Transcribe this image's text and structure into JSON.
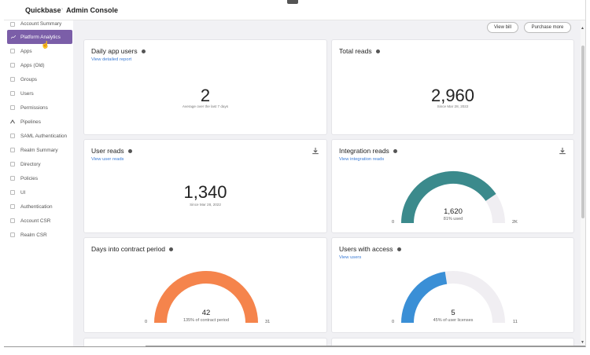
{
  "header": {
    "brand": "Quickbase",
    "separator": "›",
    "section": "Admin Console"
  },
  "sidebar": {
    "items": [
      {
        "label": "Account Summary"
      },
      {
        "label": "Platform Analytics",
        "active": true
      },
      {
        "label": "Apps"
      },
      {
        "label": "Apps (Old)"
      },
      {
        "label": "Groups"
      },
      {
        "label": "Users"
      },
      {
        "label": "Permissions"
      },
      {
        "label": "Pipelines"
      },
      {
        "label": "SAML Authentication"
      },
      {
        "label": "Realm Summary"
      },
      {
        "label": "Directory"
      },
      {
        "label": "Policies"
      },
      {
        "label": "UI"
      },
      {
        "label": "Authentication"
      },
      {
        "label": "Account CSR"
      },
      {
        "label": "Realm CSR"
      }
    ]
  },
  "toolbar": {
    "view_bill": "View bill",
    "purchase_more": "Purchase more"
  },
  "cards": {
    "daily_users": {
      "title": "Daily app users",
      "link": "View detailed report",
      "value": "2",
      "note": "Average over the last 7 days"
    },
    "total_reads": {
      "title": "Total reads",
      "value": "2,960",
      "note": "Since Mar 28, 2022"
    },
    "user_reads": {
      "title": "User reads",
      "link": "View user reads",
      "value": "1,340",
      "note": "Since Mar 28, 2022"
    },
    "integration_reads": {
      "title": "Integration reads",
      "link": "View integration reads",
      "value": "1,620",
      "sub": "81% used",
      "min": "0",
      "max": "2K",
      "fraction": 0.81,
      "color": "#3b8a8c"
    },
    "contract": {
      "title": "Days into contract period",
      "value": "42",
      "sub": "135% of contract period",
      "min": "0",
      "max": "31",
      "fraction": 1.0,
      "color": "#f5844c"
    },
    "users_access": {
      "title": "Users with access",
      "link": "View users",
      "value": "5",
      "sub": "45% of user licenses",
      "min": "0",
      "max": "11",
      "fraction": 0.45,
      "color": "#3a8fd6"
    }
  },
  "colors": {
    "accent": "#7b5ea8",
    "link": "#3a7bd5",
    "track": "#f0eef2"
  }
}
